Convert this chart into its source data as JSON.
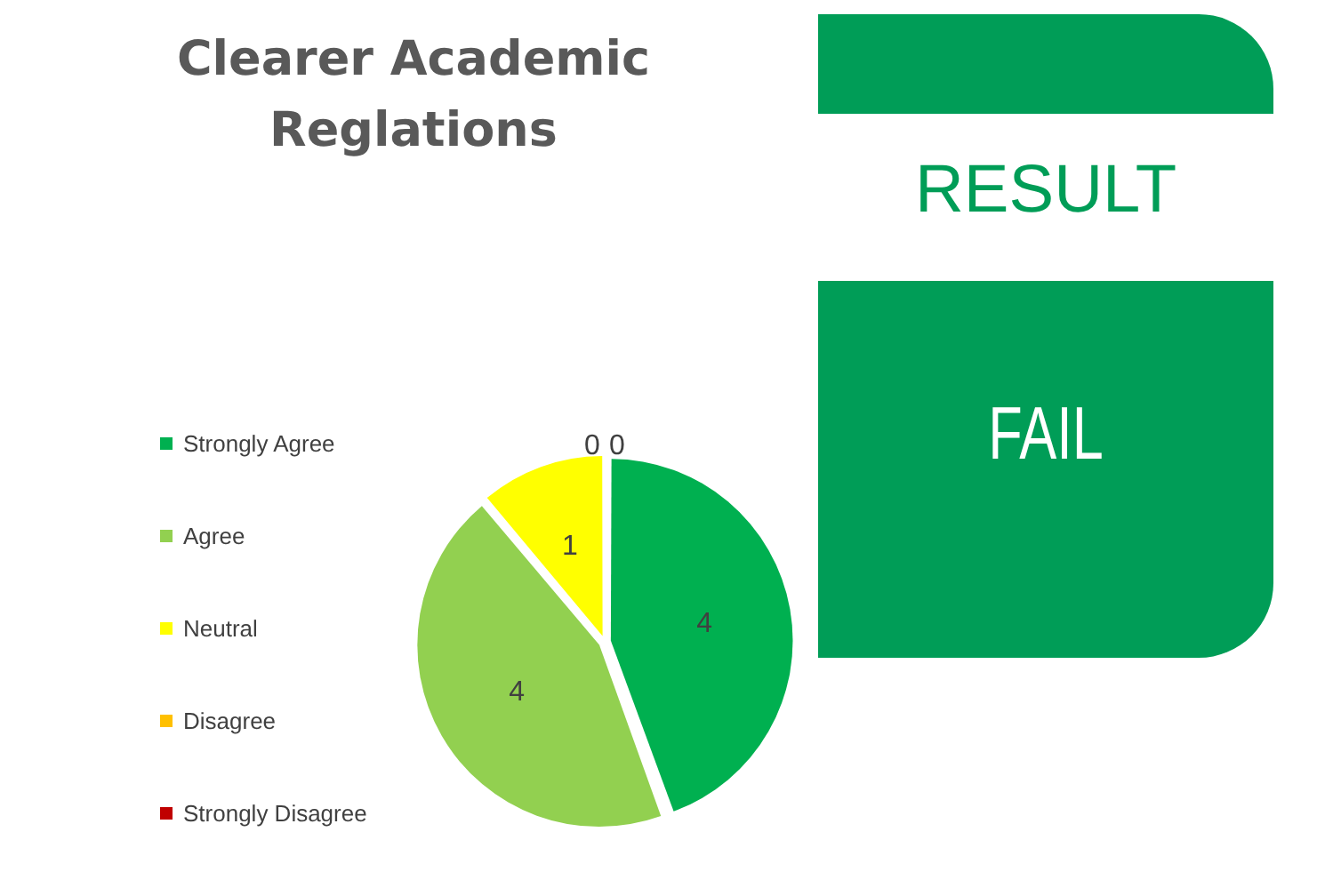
{
  "chart_data": [
    {
      "type": "pie",
      "title": "Clearer Academic Reglations",
      "categories": [
        "Strongly Agree",
        "Agree",
        "Neutral",
        "Disagree",
        "Strongly Disagree"
      ],
      "values": [
        4,
        4,
        1,
        0,
        0
      ],
      "colors": [
        "#00b050",
        "#92d050",
        "#ffff00",
        "#ffc000",
        "#c00000"
      ],
      "legend": "left",
      "value_labels": [
        "4",
        "4",
        "1",
        "0",
        "0"
      ]
    },
    {
      "type": "other",
      "title": "RESULT",
      "annotations": [
        "FAIL"
      ]
    }
  ]
}
